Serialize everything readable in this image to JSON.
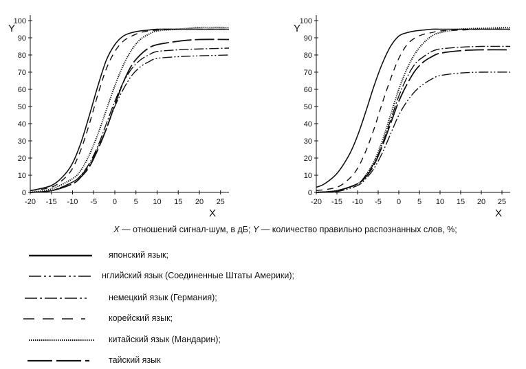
{
  "chart_data": [
    {
      "type": "line",
      "title": "",
      "xlabel": "X",
      "ylabel": "Y",
      "xlim": [
        -20,
        27
      ],
      "ylim": [
        0,
        100
      ],
      "xticks": [
        -20,
        -15,
        -10,
        -5,
        0,
        5,
        10,
        15,
        20,
        25
      ],
      "yticks": [
        0,
        10,
        20,
        30,
        40,
        50,
        60,
        70,
        80,
        90,
        100
      ],
      "series": [
        {
          "name": "японский язык",
          "style": "solid",
          "x": [
            -20,
            -15,
            -12,
            -10,
            -8,
            -6,
            -4,
            -2,
            0,
            2,
            4,
            6,
            8,
            10,
            15,
            20,
            27
          ],
          "y": [
            1,
            4,
            10,
            17,
            29,
            45,
            62,
            77,
            86,
            91,
            93,
            94,
            94.5,
            95,
            95,
            95,
            95
          ]
        },
        {
          "name": "английский язык (Соединенные Штаты Америки)",
          "style": "dashdotdot",
          "x": [
            -20,
            -15,
            -10,
            -8,
            -6,
            -4,
            -2,
            0,
            2,
            4,
            6,
            8,
            10,
            15,
            20,
            27
          ],
          "y": [
            0,
            1,
            6,
            10,
            16,
            26,
            37,
            50,
            60,
            68,
            73,
            76,
            78,
            79,
            79.5,
            80
          ]
        },
        {
          "name": "немецкий язык (Германия)",
          "style": "dashdot",
          "x": [
            -20,
            -15,
            -10,
            -8,
            -6,
            -4,
            -2,
            0,
            2,
            4,
            6,
            8,
            10,
            15,
            20,
            27
          ],
          "y": [
            0,
            1,
            6,
            10,
            17,
            27,
            40,
            53,
            64,
            72,
            77,
            80,
            82,
            83,
            83.5,
            84
          ]
        },
        {
          "name": "корейский язык",
          "style": "dashed",
          "x": [
            -20,
            -15,
            -12,
            -10,
            -8,
            -6,
            -4,
            -2,
            0,
            2,
            4,
            6,
            8,
            10,
            15,
            20,
            27
          ],
          "y": [
            1,
            3,
            8,
            14,
            25,
            40,
            57,
            72,
            82,
            88,
            91,
            93,
            94,
            94.5,
            95,
            95,
            95
          ]
        },
        {
          "name": "китайский язык (Мандарин)",
          "style": "dotted",
          "x": [
            -20,
            -15,
            -10,
            -8,
            -6,
            -4,
            -2,
            0,
            2,
            4,
            6,
            8,
            10,
            15,
            20,
            27
          ],
          "y": [
            0,
            2,
            8,
            13,
            22,
            34,
            48,
            62,
            74,
            83,
            89,
            92,
            94,
            95,
            96,
            96
          ]
        },
        {
          "name": "тайский язык",
          "style": "longdash",
          "x": [
            -20,
            -15,
            -10,
            -8,
            -6,
            -4,
            -2,
            0,
            2,
            4,
            6,
            8,
            10,
            15,
            20,
            27
          ],
          "y": [
            0,
            1,
            5,
            9,
            15,
            25,
            37,
            51,
            64,
            74,
            80,
            84,
            86,
            88,
            89,
            89
          ]
        }
      ]
    },
    {
      "type": "line",
      "title": "",
      "xlabel": "X",
      "ylabel": "Y",
      "xlim": [
        -20,
        27
      ],
      "ylim": [
        0,
        100
      ],
      "xticks": [
        -20,
        -15,
        -10,
        -5,
        0,
        5,
        10,
        15,
        20,
        25
      ],
      "yticks": [
        0,
        10,
        20,
        30,
        40,
        50,
        60,
        70,
        80,
        90,
        100
      ],
      "series": [
        {
          "name": "японский язык",
          "style": "solid",
          "x": [
            -20,
            -18,
            -15,
            -12,
            -10,
            -8,
            -6,
            -4,
            -2,
            0,
            2,
            4,
            6,
            8,
            10,
            15,
            20,
            27
          ],
          "y": [
            3,
            5,
            11,
            22,
            33,
            47,
            62,
            75,
            85,
            91,
            93,
            94,
            94.5,
            95,
            95,
            95,
            95,
            95
          ]
        },
        {
          "name": "английский язык (Соединенные Штаты Америки)",
          "style": "dashdotdot",
          "x": [
            -20,
            -15,
            -10,
            -8,
            -6,
            -4,
            -2,
            0,
            2,
            4,
            6,
            8,
            10,
            15,
            20,
            27
          ],
          "y": [
            0,
            0.5,
            4,
            8,
            14,
            23,
            34,
            45,
            53,
            59,
            63,
            66,
            68,
            69.5,
            70,
            70
          ]
        },
        {
          "name": "немецкий язык (Германия)",
          "style": "dashdot",
          "x": [
            -20,
            -15,
            -10,
            -8,
            -6,
            -4,
            -2,
            0,
            2,
            4,
            6,
            8,
            10,
            15,
            20,
            27
          ],
          "y": [
            0,
            1,
            5,
            10,
            17,
            28,
            42,
            56,
            67,
            75,
            79,
            82,
            83.5,
            84.5,
            85,
            85
          ]
        },
        {
          "name": "корейский язык",
          "style": "dashed",
          "x": [
            -20,
            -15,
            -12,
            -10,
            -8,
            -6,
            -4,
            -2,
            0,
            2,
            4,
            6,
            8,
            10,
            15,
            20,
            27
          ],
          "y": [
            1,
            3,
            8,
            14,
            24,
            37,
            52,
            66,
            78,
            86,
            90,
            92,
            93,
            94,
            94.5,
            95,
            95
          ]
        },
        {
          "name": "китайский язык (Мандарин)",
          "style": "dotted",
          "x": [
            -20,
            -15,
            -10,
            -8,
            -6,
            -4,
            -2,
            0,
            2,
            4,
            6,
            8,
            10,
            15,
            20,
            27
          ],
          "y": [
            0,
            1,
            5,
            10,
            18,
            30,
            45,
            60,
            72,
            81,
            87,
            91,
            93,
            95,
            95.5,
            96
          ]
        },
        {
          "name": "тайский язык",
          "style": "longdash",
          "x": [
            -20,
            -15,
            -10,
            -8,
            -6,
            -4,
            -2,
            0,
            2,
            4,
            6,
            8,
            10,
            15,
            20,
            27
          ],
          "y": [
            0,
            1,
            5,
            9,
            16,
            27,
            40,
            53,
            63,
            71,
            76,
            79,
            81,
            82.5,
            83,
            83
          ]
        }
      ]
    }
  ],
  "caption": "X — отношений сигнал-шум, в дБ; Y — количество правильно распознанных слов, %;",
  "caption_x": "X",
  "caption_mid": " — отношений сигнал-шум, в дБ; ",
  "caption_y": "Y",
  "caption_end": " — количество правильно распознанных слов, %;",
  "legend": [
    {
      "style": "solid",
      "label": "японский язык;"
    },
    {
      "style": "dashdotdot",
      "label": "нглийский язык (Соединенные Штаты Америки);"
    },
    {
      "style": "dashdot",
      "label": "немецкий язык (Германия);"
    },
    {
      "style": "dashed",
      "label": "корейский язык;"
    },
    {
      "style": "dotted",
      "label": "китайский язык (Мандарин);"
    },
    {
      "style": "longdash",
      "label": "тайский язык"
    }
  ],
  "colors": {
    "ink": "#111111",
    "background": "#ffffff"
  }
}
